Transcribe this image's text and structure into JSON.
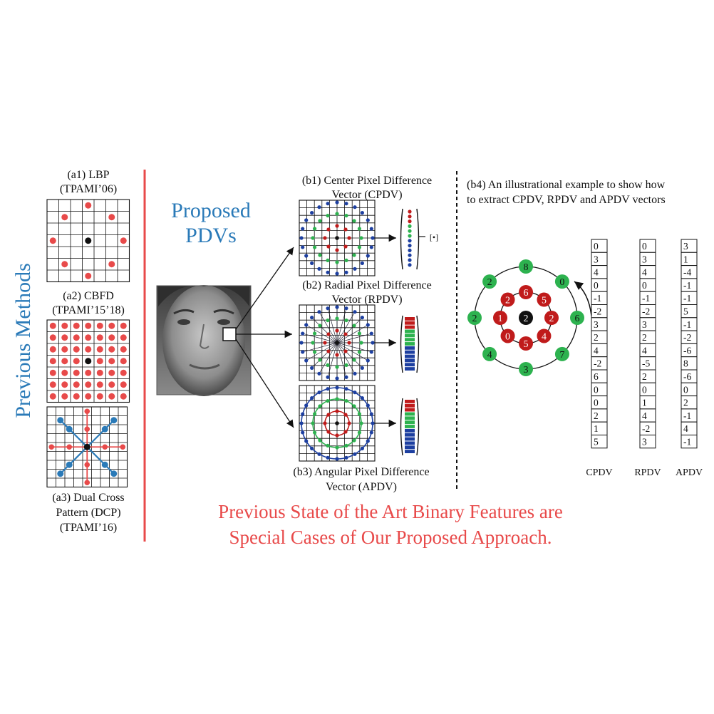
{
  "left": {
    "side_title": "Previous Methods",
    "a1": {
      "line1": "(a1) LBP",
      "line2": "(TPAMI’06)"
    },
    "a2": {
      "line1": "(a2) CBFD",
      "line2": "(TPAMI’15’18)"
    },
    "a3": {
      "line1": "(a3) Dual Cross",
      "line2": "Pattern (DCP)",
      "line3": "(TPAMI’16)"
    }
  },
  "middle": {
    "proposed_line1": "Proposed",
    "proposed_line2": "PDVs",
    "b1": {
      "line1": "(b1) Center Pixel Difference",
      "line2": "Vector (CPDV)"
    },
    "b2": {
      "line1": "(b2) Radial Pixel Difference",
      "line2": "Vector (RPDV)"
    },
    "b3": {
      "line1": "(b3) Angular Pixel Difference",
      "line2": "Vector (APDV)"
    },
    "bottom_line1": "Previous State of the Art Binary Features are",
    "bottom_line2": "Special Cases of Our Proposed Approach."
  },
  "right": {
    "b4_line1": "(b4) An illustrational example to show how",
    "b4_line2": "to extract CPDV, RPDV and APDV vectors",
    "center_value": "2",
    "inner_ring": [
      "6",
      "5",
      "2",
      "4",
      "5",
      "0",
      "1",
      "2"
    ],
    "outer_ring": [
      "8",
      "0",
      "6",
      "7",
      "3",
      "4",
      "2",
      "2"
    ],
    "columns": [
      {
        "label": "CPDV",
        "values": [
          "0",
          "3",
          "4",
          "0",
          "-1",
          "-2",
          "3",
          "2",
          "4",
          "-2",
          "6",
          "0",
          "0",
          "2",
          "1",
          "5"
        ]
      },
      {
        "label": "RPDV",
        "values": [
          "0",
          "3",
          "4",
          "0",
          "-1",
          "-2",
          "3",
          "2",
          "4",
          "-5",
          "2",
          "0",
          "1",
          "4",
          "-2",
          "3"
        ]
      },
      {
        "label": "APDV",
        "values": [
          "3",
          "1",
          "-4",
          "-1",
          "-1",
          "5",
          "-1",
          "-2",
          "-6",
          "8",
          "-6",
          "0",
          "2",
          "-1",
          "4",
          "-1"
        ]
      }
    ]
  },
  "colors": {
    "blue": "#2a7ab8",
    "red": "#e84a4a",
    "green": "#2db24f",
    "darkred": "#c01b1b",
    "navy": "#1d3fa0"
  }
}
